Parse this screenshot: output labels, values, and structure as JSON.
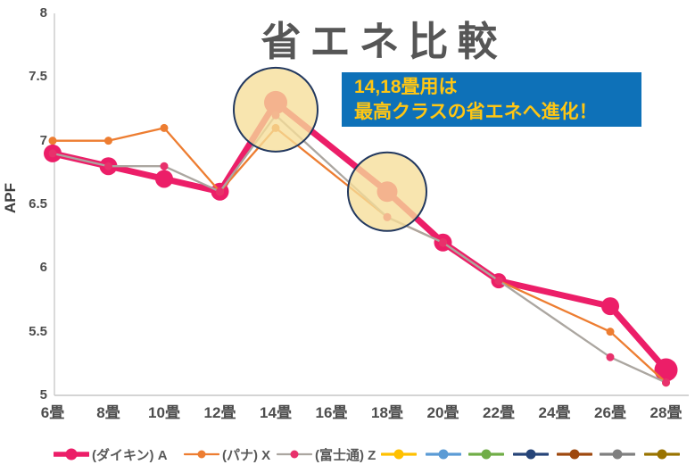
{
  "title": "省エネ比較",
  "annotation": {
    "line1": "14,18畳用は",
    "line2": "最高クラスの省エネへ進化！",
    "bg_color": "#0E71B8",
    "text_color": "#FFC613"
  },
  "chart_data": {
    "type": "line",
    "title": "省エネ比較",
    "xlabel": "",
    "ylabel": "APF",
    "ylim": [
      5,
      8
    ],
    "yticks": [
      8,
      7.5,
      7,
      6.5,
      6,
      5.5,
      5
    ],
    "grid": false,
    "legend_position": "bottom",
    "categories": [
      "6畳",
      "8畳",
      "10畳",
      "12畳",
      "14畳",
      "16畳",
      "18畳",
      "20畳",
      "22畳",
      "24畳",
      "26畳",
      "28畳"
    ],
    "series": [
      {
        "name": "(ダイキン) A",
        "color": "#EC1E68",
        "marker_color": "#EC1E68",
        "values": [
          6.9,
          6.8,
          6.7,
          6.6,
          7.3,
          null,
          6.6,
          6.2,
          5.9,
          null,
          5.7,
          5.2
        ]
      },
      {
        "name": "(パナ) X",
        "color": "#ED7D31",
        "marker_color": "#ED7D31",
        "values": [
          7.0,
          7.0,
          7.1,
          6.6,
          7.1,
          null,
          6.4,
          6.2,
          5.9,
          null,
          5.5,
          5.1
        ]
      },
      {
        "name": "(富士通) Z",
        "color": "#ABA6A0",
        "marker_color": "#E8316C",
        "values": [
          6.9,
          6.8,
          6.8,
          6.6,
          7.2,
          null,
          6.4,
          6.2,
          5.9,
          null,
          5.3,
          5.1
        ]
      }
    ],
    "highlights": [
      {
        "category": "14畳",
        "note": "circled"
      },
      {
        "category": "18畳",
        "note": "circled"
      }
    ],
    "highlight_circle": {
      "fill": "#F6DE99",
      "border": "#22385F"
    },
    "extra_legend_colors": [
      "#FFC000",
      "#5B9BD5",
      "#70AD47",
      "#264478",
      "#9E480E",
      "#7F7F7F",
      "#997300"
    ]
  }
}
